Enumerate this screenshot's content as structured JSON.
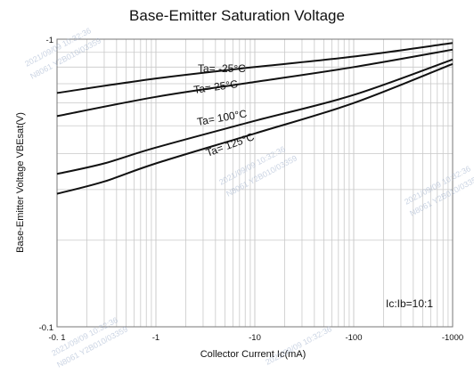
{
  "chart_data": {
    "type": "line",
    "title": "Base-Emitter Saturation Voltage",
    "xlabel": "Collector Current    Ic(mA)",
    "ylabel": "Base-Emitter Voltage    VBEsat(V)",
    "xscale": "log",
    "yscale": "log",
    "xlim": [
      0.1,
      1000
    ],
    "ylim": [
      0.1,
      1
    ],
    "x_tick_labels": [
      "-0. 1",
      "-1",
      "-10",
      "-100",
      "-1000"
    ],
    "y_tick_labels": [
      "-1",
      "-0.1"
    ],
    "grid": true,
    "annotation": "Ic:Ib=10:1",
    "series": [
      {
        "name": "Ta= -25°C",
        "x": [
          0.1,
          1,
          10,
          100,
          1000
        ],
        "y": [
          0.65,
          0.73,
          0.8,
          0.87,
          0.97
        ]
      },
      {
        "name": "Ta= 25°C",
        "x": [
          0.1,
          1,
          10,
          100,
          1000
        ],
        "y": [
          0.54,
          0.63,
          0.71,
          0.8,
          0.92
        ]
      },
      {
        "name": "Ta= 100°C",
        "x": [
          0.1,
          0.3,
          1,
          10,
          100,
          1000
        ],
        "y": [
          0.34,
          0.37,
          0.42,
          0.52,
          0.64,
          0.85
        ]
      },
      {
        "name": "Ta= 125°C",
        "x": [
          0.1,
          0.3,
          1,
          10,
          100,
          1000
        ],
        "y": [
          0.29,
          0.32,
          0.37,
          0.47,
          0.6,
          0.82
        ]
      }
    ]
  },
  "watermarks": [
    "2021/09/09 10:32:36",
    "N8061 Y2B010/03359"
  ]
}
